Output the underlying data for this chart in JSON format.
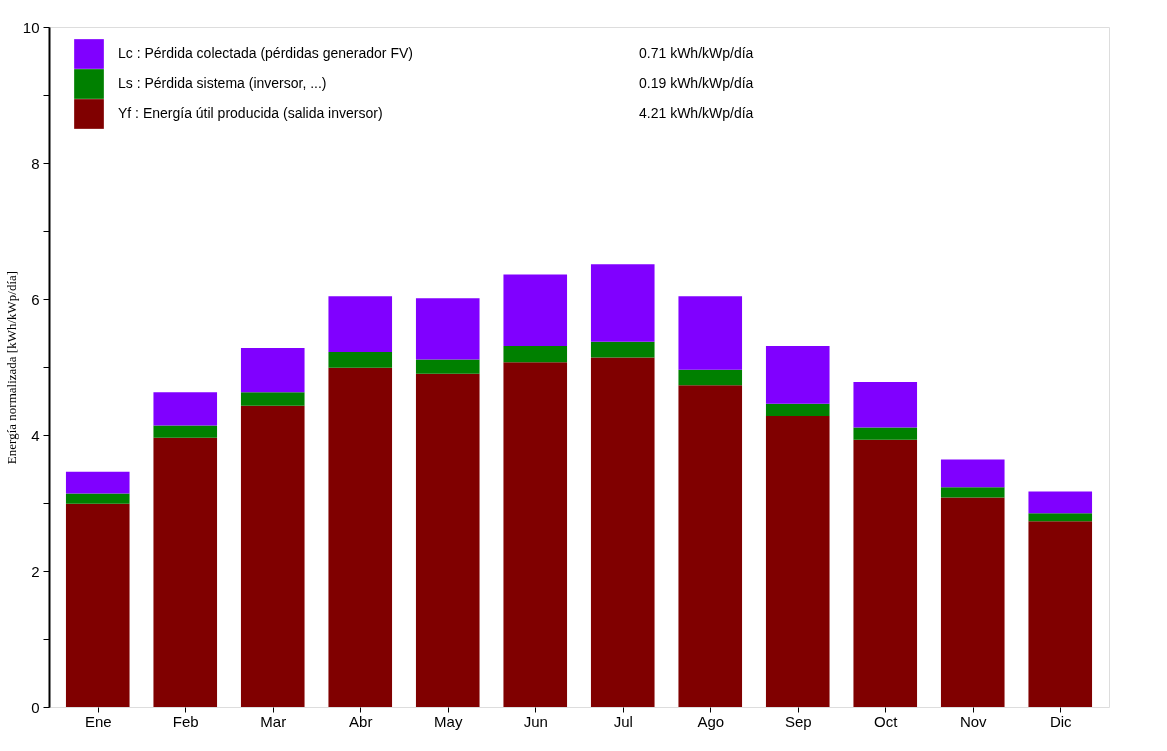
{
  "chart_data": {
    "type": "bar",
    "stacked": true,
    "ylabel": "Energía normalizada [kWh/kWp/día]",
    "categories": [
      "Ene",
      "Feb",
      "Mar",
      "Abr",
      "May",
      "Jun",
      "Jul",
      "Ago",
      "Sep",
      "Oct",
      "Nov",
      "Dic"
    ],
    "series": [
      {
        "name": "Yf : Energía útil producida  (salida inversor)",
        "color": "#800000",
        "values": [
          2.99,
          3.96,
          4.43,
          4.99,
          4.9,
          5.07,
          5.14,
          4.73,
          4.28,
          3.93,
          3.08,
          2.73
        ]
      },
      {
        "name": "Ls : Pérdida sistema  (inversor, ...)",
        "color": "#008000",
        "values": [
          0.15,
          0.18,
          0.2,
          0.23,
          0.21,
          0.24,
          0.23,
          0.23,
          0.18,
          0.18,
          0.15,
          0.12
        ]
      },
      {
        "name": "Lc : Pérdida colectada (pérdidas generador FV)",
        "color": "#8000ff",
        "values": [
          0.32,
          0.49,
          0.65,
          0.82,
          0.9,
          1.05,
          1.14,
          1.08,
          0.85,
          0.67,
          0.41,
          0.32
        ]
      }
    ],
    "annotations": [
      "4.21 kWh/kWp/día",
      "0.19 kWh/kWp/día",
      "0.71 kWh/kWp/día"
    ],
    "ylim": [
      0,
      10
    ],
    "yticks": [
      0,
      {
        "value": 1,
        "label": null
      },
      2,
      {
        "value": 3,
        "label": null
      },
      4,
      {
        "value": 5,
        "label": null
      },
      6,
      {
        "value": 7,
        "label": null
      },
      8,
      {
        "value": 9,
        "label": null
      },
      10
    ],
    "grid": false,
    "legend": "top left"
  }
}
